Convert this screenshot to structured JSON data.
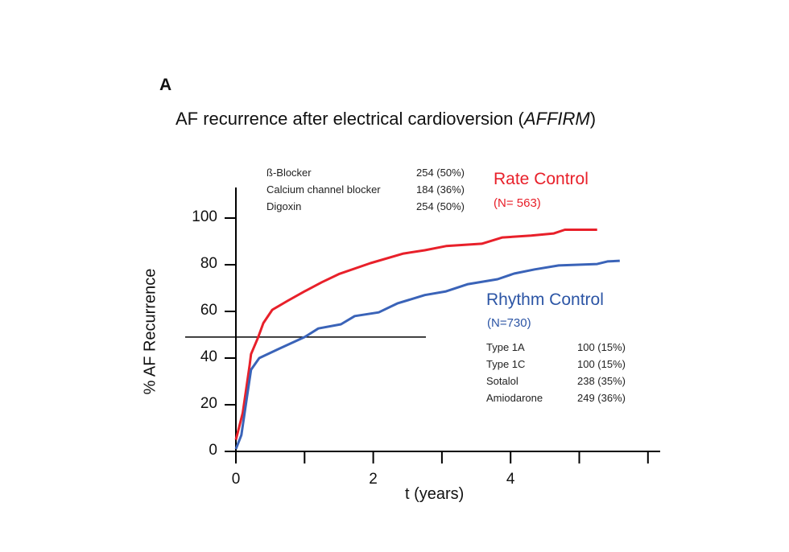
{
  "panel_label": "A",
  "chart_data": {
    "type": "line",
    "title": "AF recurrence after electrical cardioversion (",
    "title_italic": "AFFIRM",
    "title_end": ")",
    "xlabel": "t (years)",
    "ylabel": "% AF Recurrence",
    "xlim": [
      0,
      6
    ],
    "ylim": [
      0,
      100
    ],
    "xticks": [
      0,
      1,
      2,
      3,
      4,
      5,
      6
    ],
    "xtick_labels": [
      "0",
      "",
      "2",
      "",
      "4",
      "",
      ""
    ],
    "yticks": [
      0,
      20,
      40,
      60,
      80,
      100
    ],
    "grid": false,
    "reference_lines": {
      "x": 1,
      "y": 49
    },
    "series": [
      {
        "name": "Rate Control",
        "n_label": "(N= 563)",
        "color": "#e8202a",
        "x": [
          0,
          0.1,
          0.2,
          0.22,
          0.32,
          0.4,
          0.53,
          0.75,
          1.0,
          1.25,
          1.5,
          1.96,
          2.44,
          2.75,
          3.06,
          3.58,
          3.88,
          4.3,
          4.63,
          4.79,
          5.26
        ],
        "y": [
          5,
          16.5,
          37,
          41.7,
          48.6,
          55,
          60.7,
          64.5,
          68.6,
          72.5,
          76,
          80.7,
          84.8,
          86.2,
          88,
          89,
          91.7,
          92.5,
          93.4,
          95,
          95
        ]
      },
      {
        "name": "Rhythm Control",
        "n_label": "(N=730)",
        "color": "#3a63b8",
        "x": [
          0,
          0.08,
          0.16,
          0.22,
          0.34,
          0.63,
          1.0,
          1.2,
          1.53,
          1.73,
          2.08,
          2.35,
          2.75,
          3.06,
          3.38,
          3.81,
          4.05,
          4.35,
          4.7,
          5.26,
          5.41,
          5.59
        ],
        "y": [
          1,
          7,
          23,
          35,
          40,
          44,
          49,
          52.7,
          54.5,
          58,
          59.6,
          63.4,
          67,
          68.6,
          71.7,
          73.8,
          76.2,
          78,
          79.7,
          80.3,
          81.4,
          81.7
        ]
      }
    ]
  },
  "rate_drugs": [
    {
      "name": "ß-Blocker",
      "value": "254 (50%)"
    },
    {
      "name": "Calcium channel blocker",
      "value": "184 (36%)"
    },
    {
      "name": "Digoxin",
      "value": "254 (50%)"
    }
  ],
  "rhythm_drugs": [
    {
      "name": "Type 1A",
      "value": "100 (15%)"
    },
    {
      "name": "Type 1C",
      "value": "100 (15%)"
    },
    {
      "name": "Sotalol",
      "value": "238 (35%)"
    },
    {
      "name": "Amiodarone",
      "value": "249 (36%)"
    }
  ]
}
